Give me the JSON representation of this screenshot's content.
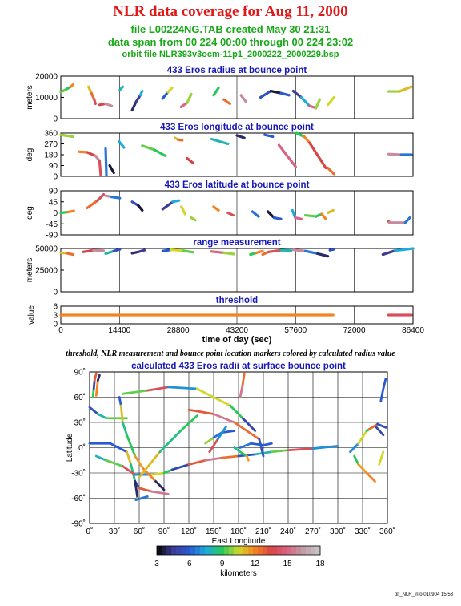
{
  "header": {
    "title": "NLR data coverage for Aug 11, 2000",
    "file_line": "file L00224NG.TAB created May 30 21:31",
    "span_line": "data span from 00 224 00:00 through 00 224 23:02",
    "orbit_line": "orbit file NLR393v3ocm-11p1_2000222_2000229.bsp"
  },
  "caption": "threshold, NLR measurement and bounce point location markers colored by calculated radius value",
  "footer": "plt_NLR_info 010904 15:53",
  "chart_data": [
    {
      "type": "line",
      "title": "433 Eros radius at bounce point",
      "ylabel": "meters",
      "xlim": [
        0,
        86400
      ],
      "ylim": [
        0,
        20000
      ],
      "yticks": [
        "0",
        "10000",
        "20000"
      ],
      "series": [
        {
          "x": [
            0,
            1500,
            2400,
            3000
          ],
          "y": [
            12500,
            14000,
            15000,
            16000
          ]
        },
        {
          "x": [
            6800,
            7500,
            8200,
            8500
          ],
          "y": [
            15000,
            12000,
            9000,
            7000
          ]
        },
        {
          "x": [
            9500,
            11000,
            12500
          ],
          "y": [
            6500,
            7000,
            6000
          ]
        },
        {
          "x": [
            14500,
            15200
          ],
          "y": [
            13500,
            15000
          ]
        },
        {
          "x": [
            17500,
            18500,
            19500,
            20000
          ],
          "y": [
            4000,
            8000,
            11000,
            13000
          ]
        },
        {
          "x": [
            25000,
            26300,
            27300
          ],
          "y": [
            9500,
            12500,
            14500
          ]
        },
        {
          "x": [
            29500,
            31000,
            32000
          ],
          "y": [
            5500,
            7500,
            11500
          ]
        },
        {
          "x": [
            37500,
            38700
          ],
          "y": [
            11000,
            14500
          ]
        },
        {
          "x": [
            40000,
            41500
          ],
          "y": [
            9000,
            7000
          ]
        },
        {
          "x": [
            44200,
            45400
          ],
          "y": [
            11000,
            8000
          ]
        },
        {
          "x": [
            49000,
            51500,
            54000,
            56000
          ],
          "y": [
            10000,
            13000,
            12000,
            11000
          ]
        },
        {
          "x": [
            57000,
            59000,
            61000,
            62600,
            63500
          ],
          "y": [
            13000,
            10000,
            6000,
            5000,
            9000
          ]
        },
        {
          "x": [
            65500,
            67000
          ],
          "y": [
            6500,
            10000
          ]
        },
        {
          "x": [
            80400,
            83000,
            86000
          ],
          "y": [
            12800,
            12800,
            15000
          ]
        }
      ]
    },
    {
      "type": "line",
      "title": "433 Eros longitude at bounce point",
      "ylabel": "deg",
      "xlim": [
        0,
        86400
      ],
      "ylim": [
        0,
        360
      ],
      "yticks": [
        "0",
        "90",
        "180",
        "270",
        "360"
      ],
      "series": [
        {
          "x": [
            0,
            3000
          ],
          "y": [
            345,
            330
          ]
        },
        {
          "x": [
            4500,
            6500,
            8500,
            9500
          ],
          "y": [
            205,
            200,
            170,
            130
          ]
        },
        {
          "x": [
            9500,
            9800
          ],
          "y": [
            130,
            10
          ]
        },
        {
          "x": [
            11000,
            11200
          ],
          "y": [
            230,
            10
          ]
        },
        {
          "x": [
            12000,
            13000
          ],
          "y": [
            90,
            30
          ]
        },
        {
          "x": [
            14300,
            15500
          ],
          "y": [
            290,
            240
          ]
        },
        {
          "x": [
            20000,
            23000,
            25700
          ],
          "y": [
            255,
            220,
            170
          ]
        },
        {
          "x": [
            28000,
            28800,
            29800
          ],
          "y": [
            320,
            305,
            300
          ]
        },
        {
          "x": [
            31000,
            32500
          ],
          "y": [
            150,
            110
          ]
        },
        {
          "x": [
            37000,
            41000
          ],
          "y": [
            310,
            270
          ]
        },
        {
          "x": [
            43200,
            45000
          ],
          "y": [
            340,
            320
          ]
        },
        {
          "x": [
            50000,
            52000
          ],
          "y": [
            345,
            330
          ]
        },
        {
          "x": [
            53500,
            57600
          ],
          "y": [
            260,
            80
          ]
        },
        {
          "x": [
            57800,
            59700,
            61000,
            65000
          ],
          "y": [
            360,
            330,
            280,
            70
          ]
        },
        {
          "x": [
            65500,
            67000
          ],
          "y": [
            70,
            20
          ]
        },
        {
          "x": [
            80400,
            83500,
            86000
          ],
          "y": [
            185,
            180,
            180
          ]
        }
      ]
    },
    {
      "type": "line",
      "title": "433 Eros latitude at bounce point",
      "ylabel": "deg",
      "xlim": [
        0,
        86400
      ],
      "ylim": [
        -90,
        90
      ],
      "yticks": [
        "-90",
        "-45",
        "0",
        "45",
        "90"
      ],
      "series": [
        {
          "x": [
            0,
            1700,
            3200
          ],
          "y": [
            0,
            3,
            8
          ]
        },
        {
          "x": [
            6500,
            9000,
            10500
          ],
          "y": [
            20,
            50,
            75
          ]
        },
        {
          "x": [
            11000,
            12500,
            14500
          ],
          "y": [
            70,
            65,
            60
          ]
        },
        {
          "x": [
            17500,
            19000,
            20000
          ],
          "y": [
            45,
            30,
            10
          ]
        },
        {
          "x": [
            25000,
            27500,
            29000
          ],
          "y": [
            15,
            45,
            50
          ]
        },
        {
          "x": [
            29600,
            30500
          ],
          "y": [
            25,
            -5
          ]
        },
        {
          "x": [
            32000,
            33000
          ],
          "y": [
            -20,
            -30
          ]
        },
        {
          "x": [
            37500,
            38700
          ],
          "y": [
            25,
            10
          ]
        },
        {
          "x": [
            41000,
            42300
          ],
          "y": [
            0,
            -10
          ]
        },
        {
          "x": [
            47000,
            48500
          ],
          "y": [
            5,
            -15
          ]
        },
        {
          "x": [
            50800,
            52300,
            54000
          ],
          "y": [
            5,
            -20,
            -25
          ]
        },
        {
          "x": [
            56800,
            57500,
            59000
          ],
          "y": [
            10,
            -20,
            -25
          ]
        },
        {
          "x": [
            60000,
            62600,
            64000,
            65000
          ],
          "y": [
            -10,
            -15,
            -5,
            -25
          ]
        },
        {
          "x": [
            65500,
            66800
          ],
          "y": [
            0,
            10
          ]
        },
        {
          "x": [
            80400,
            80600,
            84500,
            85600
          ],
          "y": [
            -35,
            -40,
            -40,
            -20
          ]
        }
      ]
    },
    {
      "type": "line",
      "title": "range measurement",
      "ylabel": "meters",
      "xlim": [
        0,
        86400
      ],
      "ylim": [
        0,
        50000
      ],
      "yticks": [
        "0",
        "25000",
        "50000"
      ],
      "series": [
        {
          "x": [
            0,
            1500,
            3000
          ],
          "y": [
            45000,
            44500,
            43000
          ]
        },
        {
          "x": [
            5500,
            8000,
            10500
          ],
          "y": [
            46000,
            48000,
            47500
          ]
        },
        {
          "x": [
            11000,
            13000,
            14500
          ],
          "y": [
            44000,
            47000,
            49000
          ]
        },
        {
          "x": [
            17500,
            19000,
            20500
          ],
          "y": [
            44500,
            46000,
            48000
          ]
        },
        {
          "x": [
            25000,
            27000,
            30000,
            32500
          ],
          "y": [
            47000,
            48500,
            47500,
            45500
          ]
        },
        {
          "x": [
            37000,
            40000,
            42500
          ],
          "y": [
            46500,
            45000,
            43500
          ]
        },
        {
          "x": [
            46500,
            48000,
            49500
          ],
          "y": [
            43000,
            45000,
            47000
          ]
        },
        {
          "x": [
            49500,
            51000,
            54000,
            56500
          ],
          "y": [
            43000,
            46000,
            48000,
            47500
          ]
        },
        {
          "x": [
            57000,
            60000,
            63000,
            65500
          ],
          "y": [
            48500,
            47000,
            44000,
            41000
          ]
        },
        {
          "x": [
            66000,
            67000
          ],
          "y": [
            48000,
            49000
          ]
        },
        {
          "x": [
            79000,
            82000,
            86400
          ],
          "y": [
            43000,
            47500,
            50000
          ]
        }
      ]
    },
    {
      "type": "scatter",
      "title": "threshold",
      "ylabel": "value",
      "xlabel": "time of day (sec)",
      "xlim": [
        0,
        86400
      ],
      "ylim": [
        0,
        6
      ],
      "yticks": [
        "0",
        "3",
        "6"
      ],
      "xticks": [
        "0",
        "14400",
        "28800",
        "43200",
        "57600",
        "72000",
        "86400"
      ],
      "series": [
        {
          "x": [
            0,
            66800
          ],
          "y": [
            3,
            3
          ]
        },
        {
          "x": [
            80400,
            86000
          ],
          "y": [
            3,
            3
          ]
        }
      ]
    },
    {
      "type": "scatter",
      "title": "calculated 433 Eros radii at surface bounce point",
      "xlabel": "East Longitude",
      "ylabel": "Latitude",
      "xlim": [
        0,
        360
      ],
      "ylim": [
        -90,
        90
      ],
      "xticks": [
        "0˚",
        "30˚",
        "60˚",
        "90˚",
        "120˚",
        "150˚",
        "180˚",
        "210˚",
        "240˚",
        "270˚",
        "300˚",
        "330˚",
        "360˚"
      ],
      "yticks": [
        "-90˚",
        "-60˚",
        "-30˚",
        "0˚",
        "30˚",
        "60˚",
        "90˚"
      ],
      "colorbar": {
        "label": "kilometers",
        "ticks": [
          "3",
          "6",
          "9",
          "12",
          "15",
          "18"
        ],
        "range": [
          3,
          18
        ]
      },
      "series": [
        {
          "x": [
            0,
            10,
            20,
            45
          ],
          "y": [
            48,
            40,
            35,
            35
          ]
        },
        {
          "x": [
            0,
            25,
            45,
            50,
            55
          ],
          "y": [
            5,
            5,
            -5,
            -20,
            -40
          ]
        },
        {
          "x": [
            4,
            5,
            6,
            8
          ],
          "y": [
            60,
            70,
            80,
            88
          ]
        },
        {
          "x": [
            8,
            10,
            12
          ],
          "y": [
            62,
            80,
            86
          ]
        },
        {
          "x": [
            8,
            20,
            40,
            55,
            75,
            90,
            100,
            120,
            140,
            160,
            180,
            200,
            220,
            240,
            270,
            300
          ],
          "y": [
            -10,
            -15,
            -22,
            -32,
            -32,
            -30,
            -26,
            -20,
            -15,
            -12,
            -10,
            -8,
            -5,
            -3,
            -1,
            2
          ]
        },
        {
          "x": [
            36,
            38,
            40,
            45,
            55,
            65,
            80,
            90
          ],
          "y": [
            60,
            50,
            30,
            15,
            -10,
            -25,
            -40,
            -50
          ]
        },
        {
          "x": [
            55,
            60,
            75,
            95
          ],
          "y": [
            -40,
            -48,
            -52,
            -55
          ]
        },
        {
          "x": [
            55,
            58,
            56,
            70
          ],
          "y": [
            -40,
            -60,
            -62,
            -58
          ]
        },
        {
          "x": [
            40,
            70,
            95,
            130,
            170,
            185,
            200
          ],
          "y": [
            64,
            68,
            72,
            70,
            50,
            35,
            20
          ]
        },
        {
          "x": [
            60,
            85,
            110,
            130
          ],
          "y": [
            -35,
            -5,
            20,
            38
          ]
        },
        {
          "x": [
            120,
            150,
            175,
            205,
            210
          ],
          "y": [
            45,
            40,
            30,
            10,
            -10
          ]
        },
        {
          "x": [
            140,
            150,
            160,
            175
          ],
          "y": [
            5,
            12,
            18,
            20
          ]
        },
        {
          "x": [
            145,
            155,
            165
          ],
          "y": [
            -5,
            10,
            25
          ]
        },
        {
          "x": [
            175,
            182,
            190,
            192
          ],
          "y": [
            0,
            -5,
            -10,
            -15
          ]
        },
        {
          "x": [
            182,
            185,
            187
          ],
          "y": [
            60,
            75,
            88
          ]
        },
        {
          "x": [
            182,
            195,
            210,
            220
          ],
          "y": [
            0,
            5,
            3,
            5
          ]
        },
        {
          "x": [
            315,
            325,
            335,
            345,
            355
          ],
          "y": [
            -5,
            5,
            20,
            26,
            15
          ]
        },
        {
          "x": [
            320,
            325,
            335,
            345
          ],
          "y": [
            -10,
            -20,
            -30,
            -40
          ]
        },
        {
          "x": [
            338,
            348,
            358
          ],
          "y": [
            22,
            28,
            24
          ]
        },
        {
          "x": [
            352,
            355,
            358
          ],
          "y": [
            55,
            70,
            82
          ]
        },
        {
          "x": [
            350,
            355
          ],
          "y": [
            -20,
            -5
          ]
        }
      ]
    }
  ]
}
